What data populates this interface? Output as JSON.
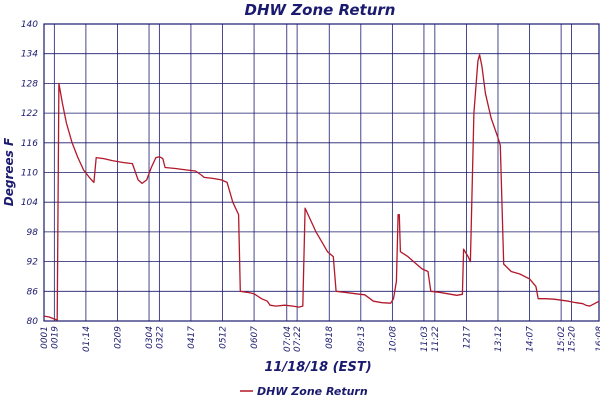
{
  "chart_data": {
    "type": "line",
    "title": "DHW Zone Return",
    "ylabel": "Degrees F",
    "xlabel": "11/18/18 (EST)",
    "ylim": [
      80,
      140
    ],
    "yticks": [
      80,
      86,
      92,
      98,
      104,
      110,
      116,
      122,
      128,
      134,
      140
    ],
    "xlim": [
      "00:01",
      "16:08"
    ],
    "xticks": [
      "00:01",
      "00:19",
      "01:14",
      "02:09",
      "03:04",
      "03:22",
      "04:17",
      "05:12",
      "06:07",
      "07:04",
      "07:22",
      "08:18",
      "09:13",
      "10:08",
      "11:03",
      "11:22",
      "12:17",
      "13:12",
      "14:07",
      "15:02",
      "15:20",
      "16:08"
    ],
    "xtick_labels": [
      "0001",
      "0019",
      "01:14",
      "0209",
      "0304",
      "0322",
      "0417",
      "0512",
      "0607",
      "07:04",
      "07:22",
      "0818",
      "09:13",
      "10:08",
      "11:03",
      "11:22",
      "1217",
      "13:12",
      "14:07",
      "15:02",
      "15:20",
      "16:08"
    ],
    "grid": true,
    "legend_position": "bottom-center",
    "series": [
      {
        "name": "DHW Zone Return",
        "color": "#b2182b",
        "points": [
          [
            "00:01",
            81.0
          ],
          [
            "00:10",
            80.8
          ],
          [
            "00:19",
            80.4
          ],
          [
            "00:24",
            80.2
          ],
          [
            "00:27",
            128.0
          ],
          [
            "00:33",
            124.0
          ],
          [
            "00:40",
            120.0
          ],
          [
            "00:50",
            116.0
          ],
          [
            "01:00",
            113.0
          ],
          [
            "01:10",
            110.5
          ],
          [
            "01:20",
            109.0
          ],
          [
            "01:28",
            108.0
          ],
          [
            "01:32",
            113.0
          ],
          [
            "01:45",
            112.8
          ],
          [
            "02:00",
            112.4
          ],
          [
            "02:20",
            112.0
          ],
          [
            "02:35",
            111.8
          ],
          [
            "02:45",
            108.5
          ],
          [
            "02:52",
            107.8
          ],
          [
            "03:00",
            108.5
          ],
          [
            "03:08",
            111.0
          ],
          [
            "03:16",
            113.0
          ],
          [
            "03:22",
            113.2
          ],
          [
            "03:28",
            112.8
          ],
          [
            "03:32",
            111.0
          ],
          [
            "03:50",
            110.8
          ],
          [
            "04:10",
            110.5
          ],
          [
            "04:25",
            110.3
          ],
          [
            "04:35",
            109.5
          ],
          [
            "04:40",
            109.0
          ],
          [
            "04:55",
            108.8
          ],
          [
            "05:10",
            108.5
          ],
          [
            "05:20",
            108.0
          ],
          [
            "05:30",
            104.0
          ],
          [
            "05:40",
            101.5
          ],
          [
            "05:43",
            86.0
          ],
          [
            "05:55",
            85.8
          ],
          [
            "06:07",
            85.5
          ],
          [
            "06:20",
            84.5
          ],
          [
            "06:30",
            84.0
          ],
          [
            "06:35",
            83.2
          ],
          [
            "06:45",
            83.0
          ],
          [
            "07:00",
            83.2
          ],
          [
            "07:15",
            83.0
          ],
          [
            "07:25",
            82.8
          ],
          [
            "07:32",
            83.0
          ],
          [
            "07:36",
            102.8
          ],
          [
            "07:45",
            100.5
          ],
          [
            "07:55",
            98.0
          ],
          [
            "08:05",
            96.0
          ],
          [
            "08:15",
            94.0
          ],
          [
            "08:25",
            93.0
          ],
          [
            "08:30",
            86.0
          ],
          [
            "08:45",
            85.8
          ],
          [
            "09:05",
            85.5
          ],
          [
            "09:20",
            85.3
          ],
          [
            "09:35",
            84.0
          ],
          [
            "09:50",
            83.7
          ],
          [
            "10:05",
            83.6
          ],
          [
            "10:10",
            84.5
          ],
          [
            "10:15",
            88.0
          ],
          [
            "10:18",
            101.5
          ],
          [
            "10:20",
            101.5
          ],
          [
            "10:22",
            94.0
          ],
          [
            "10:35",
            93.0
          ],
          [
            "10:50",
            91.5
          ],
          [
            "11:00",
            90.5
          ],
          [
            "11:10",
            90.0
          ],
          [
            "11:15",
            86.0
          ],
          [
            "11:30",
            85.8
          ],
          [
            "11:45",
            85.5
          ],
          [
            "12:00",
            85.2
          ],
          [
            "12:10",
            85.4
          ],
          [
            "12:12",
            94.5
          ],
          [
            "12:20",
            93.0
          ],
          [
            "12:24",
            92.0
          ],
          [
            "12:30",
            122.0
          ],
          [
            "12:37",
            132.5
          ],
          [
            "12:40",
            133.8
          ],
          [
            "12:44",
            131.5
          ],
          [
            "12:50",
            126.0
          ],
          [
            "13:00",
            121.0
          ],
          [
            "13:12",
            117.0
          ],
          [
            "13:16",
            115.5
          ],
          [
            "13:22",
            91.5
          ],
          [
            "13:35",
            90.0
          ],
          [
            "13:50",
            89.5
          ],
          [
            "14:07",
            88.5
          ],
          [
            "14:18",
            87.0
          ],
          [
            "14:22",
            84.5
          ],
          [
            "14:35",
            84.5
          ],
          [
            "14:50",
            84.4
          ],
          [
            "15:02",
            84.2
          ],
          [
            "15:15",
            84.0
          ],
          [
            "15:28",
            83.7
          ],
          [
            "15:40",
            83.5
          ],
          [
            "15:45",
            83.2
          ],
          [
            "15:52",
            83.0
          ],
          [
            "16:00",
            83.5
          ],
          [
            "16:08",
            84.0
          ]
        ]
      }
    ]
  },
  "legend": {
    "label": "DHW Zone Return"
  }
}
